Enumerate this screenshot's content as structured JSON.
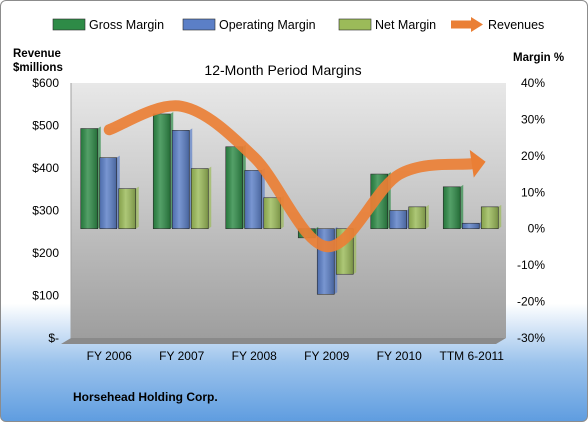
{
  "chart_data": {
    "type": "bar",
    "title": "12-Month Period Margins",
    "categories": [
      "FY 2006",
      "FY 2007",
      "FY 2008",
      "FY 2009",
      "FY 2010",
      "TTM 6-2011"
    ],
    "series": [
      {
        "name": "Gross Margin",
        "axis": "right",
        "unit": "%",
        "color": "#2e8b47",
        "values": [
          27.5,
          31.5,
          22.5,
          -2.5,
          15.0,
          11.5
        ]
      },
      {
        "name": "Operating Margin",
        "axis": "right",
        "unit": "%",
        "color": "#5b7fc7",
        "values": [
          19.5,
          27.0,
          16.0,
          -18.0,
          5.0,
          1.5
        ]
      },
      {
        "name": "Net Margin",
        "axis": "right",
        "unit": "%",
        "color": "#9bbb59",
        "values": [
          11.0,
          16.5,
          8.5,
          -12.5,
          6.0,
          6.0
        ]
      }
    ],
    "line_series": {
      "name": "Revenues",
      "axis": "left",
      "unit": "$millions",
      "color": "#ea7f35",
      "values": [
        490,
        545,
        425,
        215,
        385,
        410
      ]
    },
    "left_axis": {
      "label_line1": "Revenue",
      "label_line2": "$millions",
      "ylim": [
        0,
        600
      ],
      "ticks": [
        0,
        100,
        200,
        300,
        400,
        500,
        600
      ],
      "tick_labels": [
        "$-",
        "$100",
        "$200",
        "$300",
        "$400",
        "$500",
        "$600"
      ]
    },
    "right_axis": {
      "label": "Margin %",
      "ylim": [
        -30,
        40
      ],
      "ticks": [
        -30,
        -20,
        -10,
        0,
        10,
        20,
        30,
        40
      ],
      "tick_labels": [
        "-30%",
        "-20%",
        "-10%",
        "0%",
        "10%",
        "20%",
        "30%",
        "40%"
      ]
    },
    "legend_position": "top",
    "grid": false
  },
  "footer": {
    "company": "Horsehead Holding Corp."
  }
}
